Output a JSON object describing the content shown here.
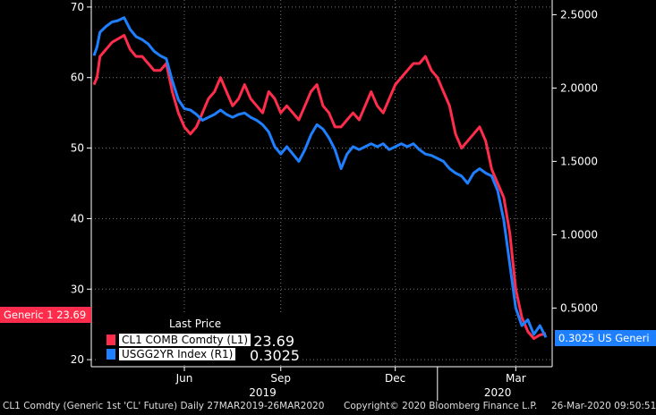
{
  "chart_data": {
    "type": "line",
    "title": "",
    "left_axis": {
      "ticks": [
        20,
        30,
        40,
        50,
        60,
        70
      ],
      "range": [
        19,
        71
      ]
    },
    "right_axis": {
      "ticks": [
        "0.5000",
        "1.0000",
        "1.5000",
        "2.0000",
        "2.5000"
      ],
      "range": [
        0.1,
        2.6
      ]
    },
    "x_months": [
      "Jun",
      "Sep",
      "Dec",
      "Mar"
    ],
    "x_years": [
      "2019",
      "2020"
    ],
    "series": [
      {
        "name": "CL1 COMB Comdty (L1)",
        "axis": "left",
        "color": "#ff2d4b",
        "last": "23.69",
        "points": [
          [
            0,
            59
          ],
          [
            0.5,
            60
          ],
          [
            1,
            63
          ],
          [
            2,
            64
          ],
          [
            3,
            65
          ],
          [
            4,
            65.5
          ],
          [
            5,
            66
          ],
          [
            6,
            64
          ],
          [
            7,
            63
          ],
          [
            8,
            63
          ],
          [
            9,
            62
          ],
          [
            10,
            61
          ],
          [
            11,
            61
          ],
          [
            12,
            62
          ],
          [
            13,
            58
          ],
          [
            14,
            55
          ],
          [
            15,
            53
          ],
          [
            16,
            52
          ],
          [
            17,
            53
          ],
          [
            18,
            55
          ],
          [
            19,
            57
          ],
          [
            20,
            58
          ],
          [
            21,
            60
          ],
          [
            22,
            58
          ],
          [
            23,
            56
          ],
          [
            24,
            57
          ],
          [
            25,
            59
          ],
          [
            26,
            57
          ],
          [
            27,
            56
          ],
          [
            28,
            55
          ],
          [
            29,
            58
          ],
          [
            30,
            57
          ],
          [
            31,
            55
          ],
          [
            32,
            56
          ],
          [
            33,
            55
          ],
          [
            34,
            54
          ],
          [
            35,
            56
          ],
          [
            36,
            58
          ],
          [
            37,
            59
          ],
          [
            38,
            56
          ],
          [
            39,
            55
          ],
          [
            40,
            53
          ],
          [
            41,
            53
          ],
          [
            42,
            54
          ],
          [
            43,
            55
          ],
          [
            44,
            54
          ],
          [
            45,
            56
          ],
          [
            46,
            58
          ],
          [
            47,
            56
          ],
          [
            48,
            55
          ],
          [
            49,
            57
          ],
          [
            50,
            59
          ],
          [
            51,
            60
          ],
          [
            52,
            61
          ],
          [
            53,
            62
          ],
          [
            54,
            62
          ],
          [
            55,
            63
          ],
          [
            56,
            61
          ],
          [
            57,
            60
          ],
          [
            58,
            58
          ],
          [
            59,
            56
          ],
          [
            60,
            52
          ],
          [
            61,
            50
          ],
          [
            62,
            51
          ],
          [
            63,
            52
          ],
          [
            64,
            53
          ],
          [
            65,
            51
          ],
          [
            66,
            47
          ],
          [
            67,
            45
          ],
          [
            68,
            43
          ],
          [
            69,
            38
          ],
          [
            70,
            30
          ],
          [
            71,
            26
          ],
          [
            72,
            24
          ],
          [
            73,
            23
          ],
          [
            74,
            23.5
          ],
          [
            75,
            23.69
          ]
        ]
      },
      {
        "name": "USGG2YR Index (R1)",
        "axis": "right",
        "color": "#1e80ff",
        "last": "0.3025",
        "points": [
          [
            0,
            2.22
          ],
          [
            0.5,
            2.28
          ],
          [
            1,
            2.38
          ],
          [
            2,
            2.42
          ],
          [
            3,
            2.45
          ],
          [
            4,
            2.46
          ],
          [
            5,
            2.48
          ],
          [
            6,
            2.4
          ],
          [
            7,
            2.35
          ],
          [
            8,
            2.33
          ],
          [
            9,
            2.3
          ],
          [
            10,
            2.25
          ],
          [
            11,
            2.22
          ],
          [
            12,
            2.2
          ],
          [
            13,
            2.05
          ],
          [
            14,
            1.92
          ],
          [
            15,
            1.86
          ],
          [
            16,
            1.85
          ],
          [
            17,
            1.82
          ],
          [
            18,
            1.78
          ],
          [
            19,
            1.8
          ],
          [
            20,
            1.82
          ],
          [
            21,
            1.85
          ],
          [
            22,
            1.82
          ],
          [
            23,
            1.8
          ],
          [
            24,
            1.82
          ],
          [
            25,
            1.83
          ],
          [
            26,
            1.8
          ],
          [
            27,
            1.78
          ],
          [
            28,
            1.75
          ],
          [
            29,
            1.7
          ],
          [
            30,
            1.6
          ],
          [
            31,
            1.55
          ],
          [
            32,
            1.6
          ],
          [
            33,
            1.55
          ],
          [
            34,
            1.5
          ],
          [
            35,
            1.58
          ],
          [
            36,
            1.68
          ],
          [
            37,
            1.75
          ],
          [
            38,
            1.72
          ],
          [
            39,
            1.66
          ],
          [
            40,
            1.58
          ],
          [
            41,
            1.45
          ],
          [
            42,
            1.55
          ],
          [
            43,
            1.6
          ],
          [
            44,
            1.58
          ],
          [
            45,
            1.6
          ],
          [
            46,
            1.62
          ],
          [
            47,
            1.6
          ],
          [
            48,
            1.62
          ],
          [
            49,
            1.58
          ],
          [
            50,
            1.6
          ],
          [
            51,
            1.62
          ],
          [
            52,
            1.6
          ],
          [
            53,
            1.62
          ],
          [
            54,
            1.58
          ],
          [
            55,
            1.55
          ],
          [
            56,
            1.54
          ],
          [
            57,
            1.52
          ],
          [
            58,
            1.5
          ],
          [
            59,
            1.45
          ],
          [
            60,
            1.42
          ],
          [
            61,
            1.4
          ],
          [
            62,
            1.35
          ],
          [
            63,
            1.42
          ],
          [
            64,
            1.45
          ],
          [
            65,
            1.42
          ],
          [
            66,
            1.4
          ],
          [
            67,
            1.3
          ],
          [
            68,
            1.1
          ],
          [
            69,
            0.8
          ],
          [
            70,
            0.5
          ],
          [
            71,
            0.38
          ],
          [
            72,
            0.42
          ],
          [
            73,
            0.32
          ],
          [
            74,
            0.38
          ],
          [
            75,
            0.3
          ]
        ]
      }
    ]
  },
  "legend": {
    "header": "Last Price",
    "rows": [
      {
        "name": "CL1 COMB Comdty  (L1)",
        "value": "23.69",
        "color": "#ff2d4b"
      },
      {
        "name": "USGG2YR Index  (R1)",
        "value": "0.3025",
        "color": "#1e80ff"
      }
    ]
  },
  "tags": {
    "left": "Generic 1 23.69",
    "right": "0.3025 US Generi"
  },
  "footer": {
    "left": "CL1 Comdty (Generic 1st 'CL' Future)  Daily 27MAR2019-26MAR2020",
    "center": "Copyright© 2020 Bloomberg Finance L.P.",
    "right": "26-Mar-2020 09:50:51"
  }
}
